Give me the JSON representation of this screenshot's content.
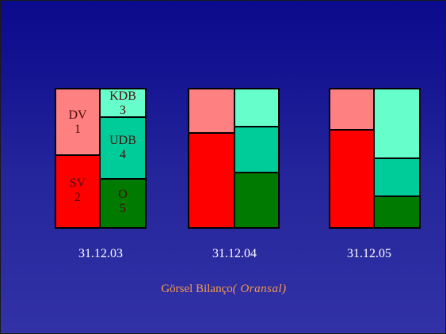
{
  "colors": {
    "background_top": "#0a0a8c",
    "background_bottom": "#3232a6",
    "dv": "#ff8080",
    "sv": "#ff0000",
    "kdb": "#66ffcc",
    "udb": "#00cc99",
    "o": "#007a00",
    "caption": "#f49a4a"
  },
  "panels": [
    {
      "date": "31.12.03",
      "left": [
        {
          "code": "DV",
          "num": "1",
          "share": 0.4
        },
        {
          "code": "SV",
          "num": "2",
          "share": 0.6
        }
      ],
      "right": [
        {
          "code": "KDB",
          "num": "3",
          "share": 0.2
        },
        {
          "code": "UDB",
          "num": "4",
          "share": 0.45
        },
        {
          "code": "O",
          "num": "5",
          "share": 0.35
        }
      ]
    },
    {
      "date": "31.12.04",
      "left": [
        {
          "code": "",
          "num": "",
          "share": 0.31
        },
        {
          "code": "",
          "num": "",
          "share": 0.69
        }
      ],
      "right": [
        {
          "code": "",
          "num": "",
          "share": 0.27
        },
        {
          "code": "",
          "num": "",
          "share": 0.32
        },
        {
          "code": "",
          "num": "",
          "share": 0.41
        }
      ]
    },
    {
      "date": "31.12.05",
      "left": [
        {
          "code": "",
          "num": "",
          "share": 0.29
        },
        {
          "code": "",
          "num": "",
          "share": 0.71
        }
      ],
      "right": [
        {
          "code": "",
          "num": "",
          "share": 0.5
        },
        {
          "code": "",
          "num": "",
          "share": 0.27
        },
        {
          "code": "",
          "num": "",
          "share": 0.23
        }
      ]
    }
  ],
  "caption": {
    "main": "Görsel Bilanço",
    "italic": "( Oransal)"
  }
}
